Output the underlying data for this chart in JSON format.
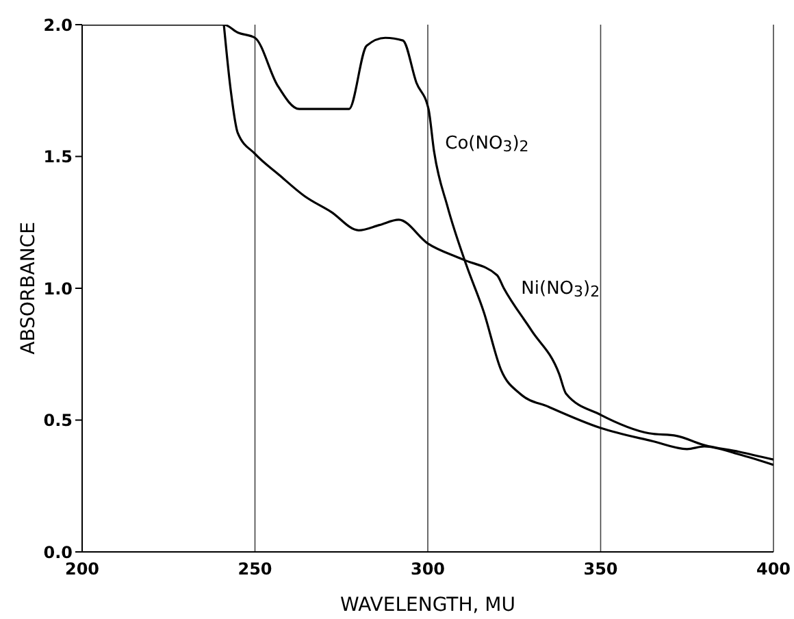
{
  "chart_data": {
    "type": "line",
    "xlabel": "WAVELENGTH, MU",
    "ylabel": "ABSORBANCE",
    "xlim": [
      200,
      400
    ],
    "xticks": [
      200,
      250,
      300,
      350,
      400
    ],
    "ylim": [
      0,
      2
    ],
    "yticks": [
      {
        "value": 0,
        "label": "0.0"
      },
      {
        "value": 0.5,
        "label": "0.5"
      },
      {
        "value": 1,
        "label": "1.0"
      },
      {
        "value": 1.5,
        "label": "1.5"
      },
      {
        "value": 2,
        "label": "2.0"
      }
    ],
    "grid": "x",
    "marker": "none",
    "line_style": "solid",
    "series": [
      {
        "name": "Co(NO$_{3}$)$_{2}$",
        "color": "#000000",
        "x": [
          200,
          241,
          245,
          250,
          256.5,
          262.8,
          277.2,
          282.3,
          287.7,
          292.8,
          296.7,
          300.2,
          301.8,
          305.7,
          311.1,
          316.2,
          321.2,
          326.7,
          335,
          350,
          365,
          375,
          380,
          390,
          400
        ],
        "values": [
          2,
          2,
          1.97,
          1.95,
          1.77,
          1.68,
          1.68,
          1.92,
          1.95,
          1.94,
          1.78,
          1.68,
          1.52,
          1.31,
          1.09,
          0.91,
          0.69,
          0.6,
          0.55,
          0.47,
          0.42,
          0.39,
          0.4,
          0.37,
          0.33
        ]
      },
      {
        "name": "Ni(NO$_{3}$)$_{2}$",
        "color": "#000000",
        "x": [
          241,
          243,
          245,
          250,
          257,
          264.3,
          272,
          280,
          286,
          291.6,
          300,
          310,
          320,
          322,
          330,
          338,
          340,
          350,
          364,
          372,
          380,
          390,
          400
        ],
        "values": [
          2,
          1.75,
          1.59,
          1.51,
          1.43,
          1.35,
          1.29,
          1.22,
          1.24,
          1.26,
          1.17,
          1.11,
          1.05,
          1.0,
          0.84,
          0.675,
          0.6,
          0.52,
          0.45,
          0.44,
          0.405,
          0.38,
          0.35
        ]
      }
    ]
  }
}
